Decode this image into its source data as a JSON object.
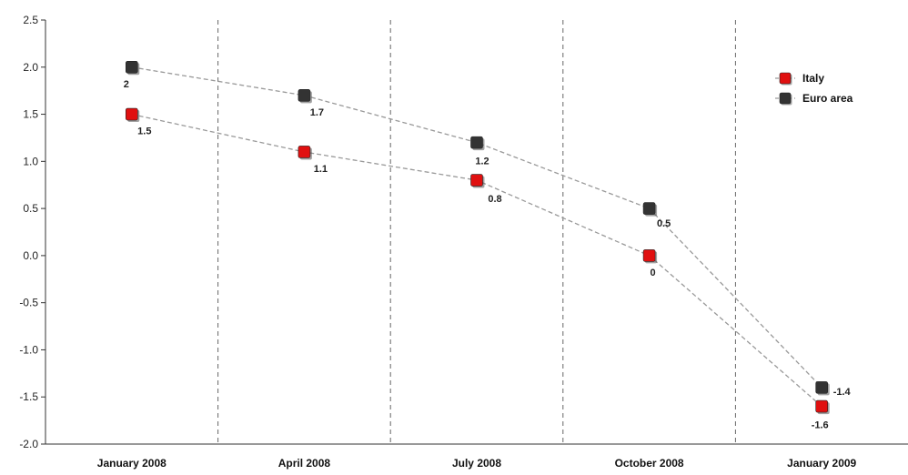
{
  "chart_data": {
    "type": "line",
    "categories": [
      "January 2008",
      "April 2008",
      "July 2008",
      "October 2008",
      "January 2009"
    ],
    "ylim": [
      -2.0,
      2.5
    ],
    "yticks": [
      "2.5",
      "2.0",
      "1.5",
      "1.0",
      "0.5",
      "0.0",
      "-0.5",
      "-1.0",
      "-1.5",
      "-2.0"
    ],
    "ytick_values": [
      2.5,
      2.0,
      1.5,
      1.0,
      0.5,
      0.0,
      -0.5,
      -1.0,
      -1.5,
      -2.0
    ],
    "grid": "vertical dashed separators between categories",
    "legend_position": "top-right",
    "series": [
      {
        "name": "Italy",
        "values": [
          1.5,
          1.1,
          0.8,
          0,
          -1.6
        ],
        "labels": [
          "1.5",
          "1.1",
          "0.8",
          "0",
          "-1.6"
        ],
        "color": "#e01010"
      },
      {
        "name": "Euro area",
        "values": [
          2,
          1.7,
          1.2,
          0.5,
          -1.4
        ],
        "labels": [
          "2",
          "1.7",
          "1.2",
          "0.5",
          "-1.4"
        ],
        "color": "#333333"
      }
    ]
  }
}
